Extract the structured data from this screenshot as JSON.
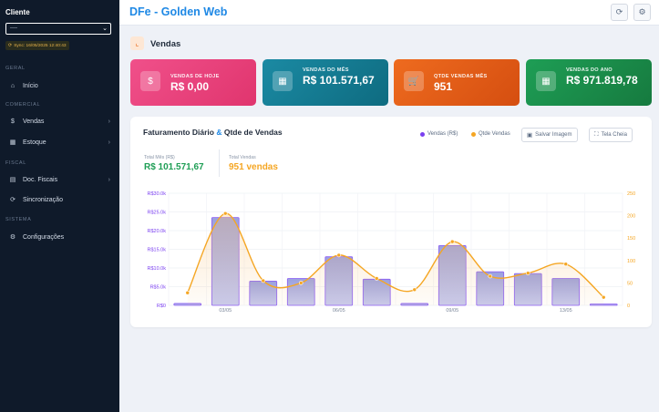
{
  "sidebar": {
    "client_title": "Cliente",
    "client_select": "----",
    "sync_text": "Sync: 16/05/2025 12:40:43",
    "sections": {
      "geral": "GERAL",
      "comercial": "COMERCIAL",
      "fiscal": "FISCAL",
      "sistema": "SISTEMA"
    },
    "items": {
      "inicio": "Início",
      "vendas": "Vendas",
      "estoque": "Estoque",
      "doc_fiscais": "Doc. Fiscais",
      "sincronizacao": "Sincronização",
      "configuracoes": "Configurações"
    }
  },
  "header": {
    "brand": "DFe - Golden Web"
  },
  "page": {
    "title": "Vendas"
  },
  "kpis": [
    {
      "label": "VENDAS DE HOJE",
      "value": "R$ 0,00",
      "icon": "dollar-icon",
      "color_from": "#f0508a",
      "color_to": "#e0356e"
    },
    {
      "label": "VENDAS DO MÊS",
      "value": "R$ 101.571,67",
      "icon": "calendar-icon",
      "color_from": "#1b8aa3",
      "color_to": "#0e6b80"
    },
    {
      "label": "QTDE VENDAS MÊS",
      "value": "951",
      "icon": "cart-icon",
      "color_from": "#ee6b1f",
      "color_to": "#d54e10"
    },
    {
      "label": "VENDAS DO ANO",
      "value": "R$ 971.819,78",
      "icon": "calendar-icon",
      "color_from": "#1e9e55",
      "color_to": "#167a3f"
    }
  ],
  "chart_card": {
    "title_part1": "Faturamento Diário",
    "title_amp": "&",
    "title_part2": "Qtde de Vendas",
    "legend_vendas": "Vendas (R$)",
    "legend_qtde": "Qtde Vendas",
    "btn_save": "Salvar Imagem",
    "btn_fullscreen": "Tela Cheia",
    "stat_total_mes_label": "Total Mês (R$)",
    "stat_total_mes_value": "R$ 101.571,67",
    "stat_total_vendas_label": "Total Vendas",
    "stat_total_vendas_value": "951 vendas"
  },
  "chart_data": {
    "type": "bar",
    "series": [
      {
        "name": "Vendas (R$)",
        "type": "bar",
        "axis": "left",
        "color": "#8a8fd8",
        "values": [
          500,
          23500,
          6500,
          7200,
          13000,
          7000,
          500,
          16000,
          9000,
          8500,
          7200,
          200
        ]
      },
      {
        "name": "Qtde Vendas",
        "type": "line",
        "axis": "right",
        "color": "#f5a623",
        "values": [
          28,
          205,
          55,
          50,
          112,
          60,
          35,
          142,
          65,
          72,
          92,
          18
        ]
      }
    ],
    "categories": [
      "",
      "03/05",
      "",
      "",
      "06/05",
      "",
      "",
      "09/05",
      "",
      "",
      "13/05",
      ""
    ],
    "y_left_ticks": [
      "R$0",
      "R$5.0k",
      "R$10.0k",
      "R$15.0k",
      "R$20.0k",
      "R$25.0k",
      "R$30.0k"
    ],
    "y_left_range": [
      0,
      30000
    ],
    "y_right_ticks": [
      "0",
      "50",
      "100",
      "150",
      "200",
      "250"
    ],
    "y_right_range": [
      0,
      250
    ],
    "grid": true
  }
}
